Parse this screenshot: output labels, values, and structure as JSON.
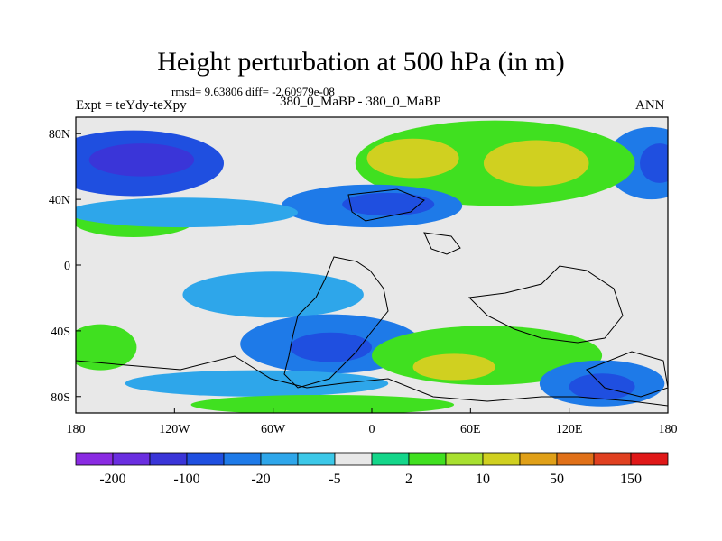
{
  "chart_data": {
    "type": "filled-contour-map",
    "title": "Height perturbation at 500 hPa (in m)",
    "stats_line": "rmsd= 9.63806 diff= -2.60979e-08",
    "left_label": "Expt = teYdy-teXpy",
    "center_label": "380_0_MaBP - 380_0_MaBP",
    "right_label": "ANN",
    "x_axis": {
      "range": [
        -180,
        180
      ],
      "tick_values": [
        -180,
        -120,
        -60,
        0,
        60,
        120,
        180
      ],
      "tick_labels": [
        "180",
        "120W",
        "60W",
        "0",
        "60E",
        "120E",
        "180"
      ]
    },
    "y_axis": {
      "range": [
        -90,
        90
      ],
      "tick_values": [
        80,
        40,
        0,
        -40,
        -80
      ],
      "tick_labels": [
        "80N",
        "40N",
        "0",
        "40S",
        "80S"
      ]
    },
    "colorbar": {
      "colors": [
        "#8a2be2",
        "#6a2ee0",
        "#3a35d8",
        "#1f4fe0",
        "#1e7ae8",
        "#2ea6ea",
        "#3cc8e8",
        "#e8e8e8",
        "#14d68a",
        "#40e020",
        "#a8e030",
        "#d0d020",
        "#e0a018",
        "#e07018",
        "#e04020",
        "#e01818"
      ],
      "tick_labels": [
        "-200",
        "-100",
        "-20",
        "-5",
        "2",
        "10",
        "50",
        "150"
      ]
    },
    "regions": [
      {
        "name": "north-pacific-low",
        "lon": -145,
        "lat": 62,
        "rlon": 55,
        "rlat": 20,
        "level": -20
      },
      {
        "name": "north-pacific-low-core",
        "lon": -140,
        "lat": 64,
        "rlon": 32,
        "rlat": 10,
        "level": -50
      },
      {
        "name": "arctic-east-low",
        "lon": 170,
        "lat": 62,
        "rlon": 28,
        "rlat": 22,
        "level": -10
      },
      {
        "name": "arctic-east-low-core",
        "lon": 175,
        "lat": 62,
        "rlon": 12,
        "rlat": 12,
        "level": -20
      },
      {
        "name": "eurasia-high",
        "lon": 75,
        "lat": 62,
        "rlon": 85,
        "rlat": 26,
        "level": 5
      },
      {
        "name": "eurasia-high-core1",
        "lon": 25,
        "lat": 65,
        "rlon": 28,
        "rlat": 12,
        "level": 20
      },
      {
        "name": "eurasia-high-core2",
        "lon": 100,
        "lat": 62,
        "rlon": 32,
        "rlat": 14,
        "level": 20
      },
      {
        "name": "atlantic-low",
        "lon": 0,
        "lat": 36,
        "rlon": 55,
        "rlat": 13,
        "level": -10
      },
      {
        "name": "atlantic-low-core",
        "lon": 10,
        "lat": 37,
        "rlon": 28,
        "rlat": 7,
        "level": -30
      },
      {
        "name": "midlat-pacific-high",
        "lon": -145,
        "lat": 28,
        "rlon": 38,
        "rlat": 11,
        "level": 5
      },
      {
        "name": "north-pacific-band",
        "lon": -115,
        "lat": 32,
        "rlon": 70,
        "rlat": 9,
        "level": -5
      },
      {
        "name": "tropical-low",
        "lon": -60,
        "lat": -18,
        "rlon": 55,
        "rlat": 14,
        "level": -5
      },
      {
        "name": "south-atlantic-low",
        "lon": -25,
        "lat": -48,
        "rlon": 55,
        "rlat": 18,
        "level": -10
      },
      {
        "name": "south-atlantic-low-core",
        "lon": -25,
        "lat": -50,
        "rlon": 25,
        "rlat": 9,
        "level": -30
      },
      {
        "name": "south-indian-high",
        "lon": 70,
        "lat": -55,
        "rlon": 70,
        "rlat": 18,
        "level": 5
      },
      {
        "name": "south-indian-high-core",
        "lon": 50,
        "lat": -62,
        "rlon": 25,
        "rlat": 8,
        "level": 20
      },
      {
        "name": "south-pacific-low",
        "lon": 140,
        "lat": -72,
        "rlon": 38,
        "rlat": 14,
        "level": -10
      },
      {
        "name": "south-pacific-low-core",
        "lon": 140,
        "lat": -74,
        "rlon": 20,
        "rlat": 8,
        "level": -30
      },
      {
        "name": "southwest-pacific-high",
        "lon": -165,
        "lat": -50,
        "rlon": 22,
        "rlat": 14,
        "level": 5
      },
      {
        "name": "southern-band",
        "lon": -70,
        "lat": -72,
        "rlon": 80,
        "rlat": 8,
        "level": -5
      },
      {
        "name": "antarctic-high",
        "lon": -30,
        "lat": -85,
        "rlon": 80,
        "rlat": 6,
        "level": 5
      }
    ]
  }
}
